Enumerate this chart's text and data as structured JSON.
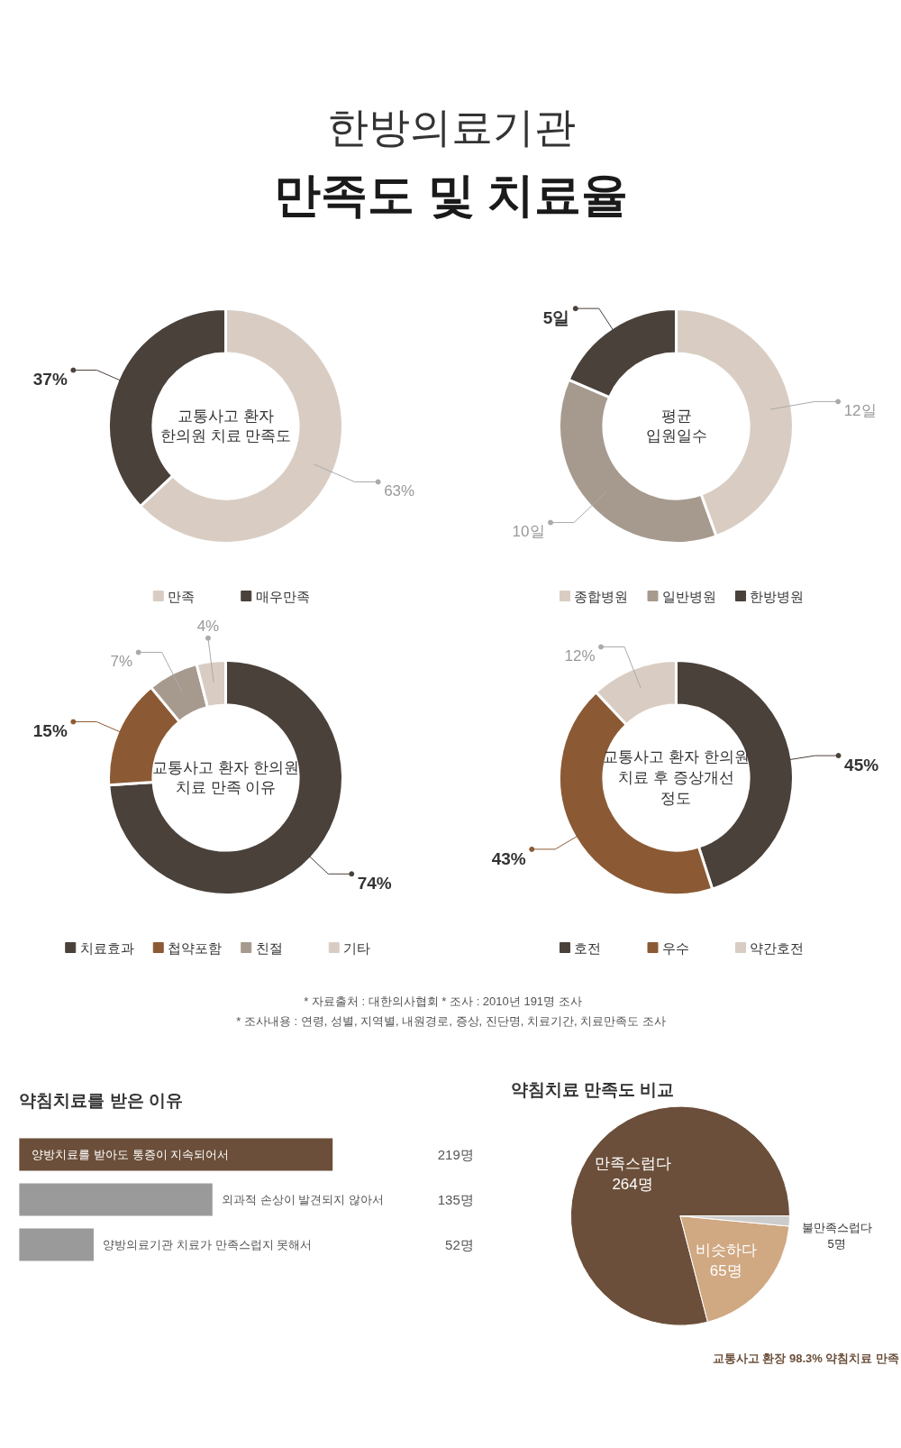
{
  "chart_data": [
    {
      "type": "donut",
      "title": "교통사고 환자\n한의원 치료 만족도",
      "annotations": [
        "한방의료기관",
        "만족도 및 치료율"
      ],
      "categories": [
        "만족",
        "매우만족"
      ],
      "values": [
        63,
        37
      ],
      "colors": [
        "#d9cdc3",
        "#4a413b"
      ],
      "value_labels": [
        "63%",
        "37%"
      ],
      "legend": "bottom"
    },
    {
      "type": "donut",
      "title": "평균\n입원일수",
      "categories": [
        "종합병원",
        "일반병원",
        "한방병원"
      ],
      "values": [
        12,
        10,
        5
      ],
      "colors": [
        "#d9cdc3",
        "#a69a8e",
        "#4a413b"
      ],
      "value_labels": [
        "12일",
        "10일",
        "5일"
      ],
      "legend": "bottom"
    },
    {
      "type": "donut",
      "title": "교통사고 환자 한의원\n치료 만족 이유",
      "categories": [
        "치료효과",
        "첩약포함",
        "친절",
        "기타"
      ],
      "values": [
        74,
        15,
        7,
        4
      ],
      "colors": [
        "#4a413b",
        "#8b5a35",
        "#a69a8e",
        "#d9cdc3"
      ],
      "value_labels": [
        "74%",
        "15%",
        "7%",
        "4%"
      ],
      "legend": "bottom"
    },
    {
      "type": "donut",
      "title": "교통사고 환자 한의원\n치료 후 증상개선\n정도",
      "annotations": [
        "* 자료출처 : 대한의사협회      * 조사 : 2010년 191명 조사",
        "* 조사내용 : 연령, 성별, 지역별, 내원경로, 증상, 진단명, 치료기간, 치료만족도 조사"
      ],
      "categories": [
        "호전",
        "우수",
        "약간호전"
      ],
      "values": [
        45,
        43,
        12
      ],
      "colors": [
        "#4a413b",
        "#8b5a35",
        "#d9cdc3"
      ],
      "value_labels": [
        "45%",
        "43%",
        "12%"
      ],
      "legend": "bottom"
    },
    {
      "type": "bar",
      "orientation": "horizontal",
      "title": "약침치료를 받은 이유",
      "categories": [
        "양방치료를 받아도 통증이 지속되어서",
        "외과적 손상이 발견되지 않아서",
        "양방의료기관 치료가 만족스럽지 못해서"
      ],
      "values": [
        219,
        135,
        52
      ],
      "colors": [
        "#6b4f3a",
        "#9a9a9a",
        "#9a9a9a"
      ],
      "value_labels": [
        "219명",
        "135명",
        "52명"
      ]
    },
    {
      "type": "pie",
      "title": "약침치료 만족도 비교",
      "categories": [
        "만족스럽다",
        "비슷하다",
        "불만족스럽다"
      ],
      "values": [
        264,
        65,
        5
      ],
      "colors": [
        "#6b4f3a",
        "#d0a882",
        "#cccccc"
      ],
      "value_labels": [
        "264명",
        "65명",
        "5명"
      ],
      "annotations": [
        "교통사고 환장 98.3% 약침치료 만족"
      ]
    }
  ]
}
